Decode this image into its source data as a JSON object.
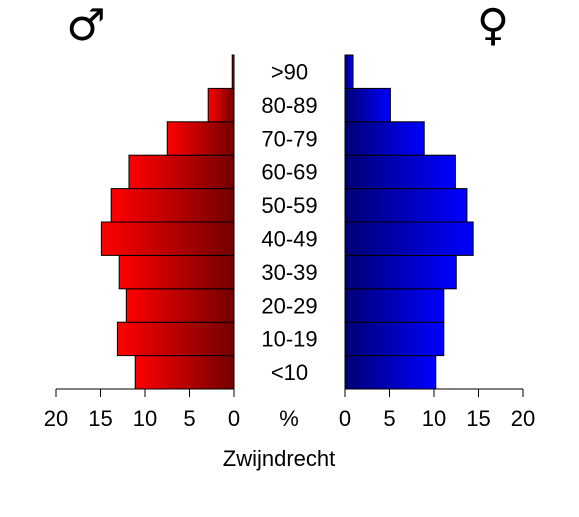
{
  "chart_data": {
    "type": "pyramid",
    "title": "Zwijndrecht",
    "x_label": "%",
    "categories": [
      "<10",
      "10-19",
      "20-29",
      "30-39",
      "40-49",
      "50-59",
      "60-69",
      "70-79",
      "80-89",
      ">90"
    ],
    "series": [
      {
        "name": "♂",
        "color": "#ff0000",
        "values": [
          11.1,
          13.1,
          12.1,
          12.9,
          14.9,
          13.8,
          11.8,
          7.5,
          2.9,
          0.2
        ]
      },
      {
        "name": "♀",
        "color": "#0000ff",
        "values": [
          10.2,
          11.1,
          11.1,
          12.5,
          14.4,
          13.7,
          12.4,
          8.9,
          5.1,
          0.9
        ]
      }
    ],
    "xlim": [
      0,
      20
    ],
    "xticks": [
      0,
      5,
      10,
      15,
      20
    ]
  }
}
